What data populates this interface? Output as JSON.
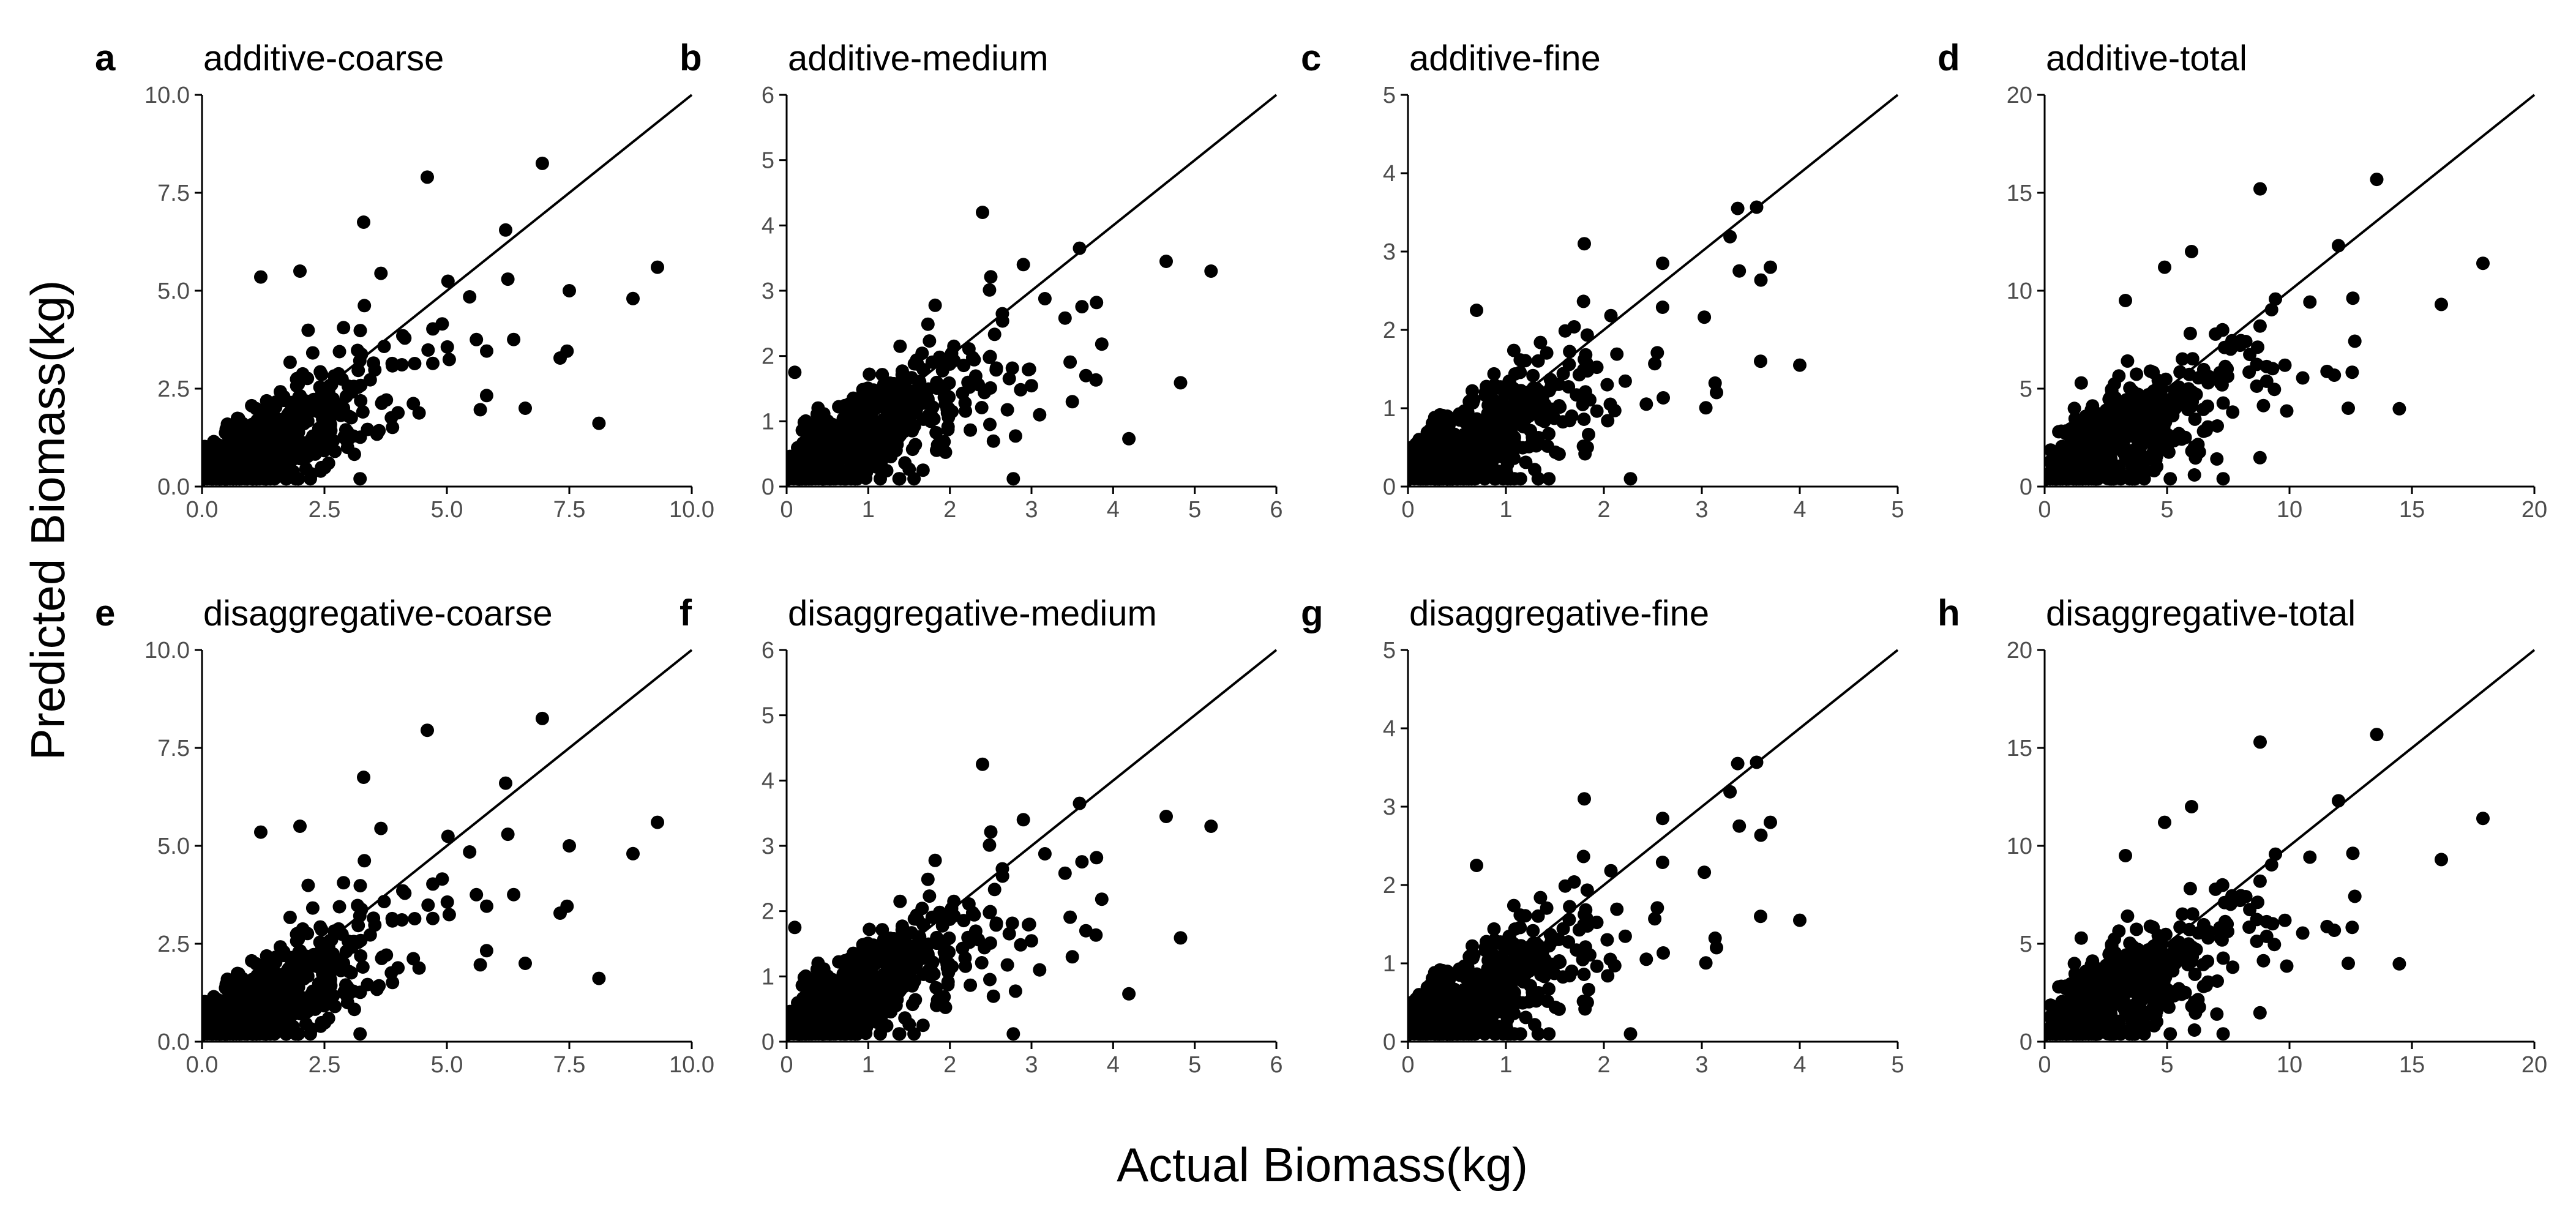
{
  "figure": {
    "xlabel": "Actual Biomass(kg)",
    "ylabel": "Predicted Biomass(kg)",
    "point_color": "#000000",
    "axis_color": "#000000",
    "tick_label_color": "#4d4d4d"
  },
  "chart_data": [
    {
      "type": "scatter",
      "letter": "a",
      "title": "additive-coarse",
      "xlim": [
        0,
        10
      ],
      "ylim": [
        0,
        10
      ],
      "xticks": [
        "0.0",
        "2.5",
        "5.0",
        "7.5",
        "10.0"
      ],
      "yticks": [
        "0.0",
        "2.5",
        "5.0",
        "7.5",
        "10.0"
      ],
      "identity_line": true,
      "n_points": 520,
      "seed": 11,
      "highlight_points": [
        [
          4.6,
          7.9
        ],
        [
          3.3,
          6.75
        ],
        [
          6.2,
          6.55
        ],
        [
          9.3,
          5.6
        ],
        [
          8.8,
          4.8
        ],
        [
          7.5,
          5.0
        ],
        [
          6.6,
          2.0
        ],
        [
          1.2,
          5.35
        ],
        [
          2.0,
          5.5
        ]
      ]
    },
    {
      "type": "scatter",
      "letter": "b",
      "title": "additive-medium",
      "xlim": [
        0,
        6
      ],
      "ylim": [
        0,
        6
      ],
      "xticks": [
        "0",
        "1",
        "2",
        "3",
        "4",
        "5",
        "6"
      ],
      "yticks": [
        "0",
        "1",
        "2",
        "3",
        "4",
        "5",
        "6"
      ],
      "identity_line": true,
      "n_points": 540,
      "seed": 23,
      "highlight_points": [
        [
          2.4,
          4.2
        ],
        [
          5.2,
          3.3
        ],
        [
          4.65,
          3.45
        ],
        [
          3.5,
          1.3
        ],
        [
          3.1,
          1.1
        ],
        [
          0.1,
          1.75
        ],
        [
          2.9,
          3.4
        ]
      ]
    },
    {
      "type": "scatter",
      "letter": "c",
      "title": "additive-fine",
      "xlim": [
        0,
        5
      ],
      "ylim": [
        0,
        5
      ],
      "xticks": [
        "0",
        "1",
        "2",
        "3",
        "4",
        "5"
      ],
      "yticks": [
        "0",
        "1",
        "2",
        "3",
        "4",
        "5"
      ],
      "identity_line": true,
      "n_points": 540,
      "seed": 37,
      "highlight_points": [
        [
          1.8,
          3.1
        ],
        [
          4.0,
          1.55
        ],
        [
          3.6,
          1.6
        ],
        [
          3.7,
          2.8
        ],
        [
          3.15,
          1.2
        ],
        [
          0.7,
          2.25
        ],
        [
          2.6,
          2.85
        ]
      ]
    },
    {
      "type": "scatter",
      "letter": "d",
      "title": "additive-total",
      "xlim": [
        0,
        20
      ],
      "ylim": [
        0,
        20
      ],
      "xticks": [
        "0",
        "5",
        "10",
        "15",
        "20"
      ],
      "yticks": [
        "0",
        "5",
        "10",
        "15",
        "20"
      ],
      "identity_line": true,
      "n_points": 540,
      "seed": 41,
      "highlight_points": [
        [
          8.8,
          15.2
        ],
        [
          17.9,
          11.4
        ],
        [
          16.2,
          9.3
        ],
        [
          12.4,
          4.0
        ],
        [
          6.0,
          12.0
        ],
        [
          12.0,
          12.3
        ],
        [
          3.3,
          9.5
        ],
        [
          4.9,
          11.2
        ]
      ]
    },
    {
      "type": "scatter",
      "letter": "e",
      "title": "disaggregative-coarse",
      "xlim": [
        0,
        10
      ],
      "ylim": [
        0,
        10
      ],
      "xticks": [
        "0.0",
        "2.5",
        "5.0",
        "7.5",
        "10.0"
      ],
      "yticks": [
        "0.0",
        "2.5",
        "5.0",
        "7.5",
        "10.0"
      ],
      "identity_line": true,
      "n_points": 520,
      "seed": 11,
      "highlight_points": [
        [
          4.6,
          7.95
        ],
        [
          3.3,
          6.75
        ],
        [
          6.2,
          6.6
        ],
        [
          9.3,
          5.6
        ],
        [
          8.8,
          4.8
        ],
        [
          7.5,
          5.0
        ],
        [
          6.6,
          2.0
        ],
        [
          1.2,
          5.35
        ],
        [
          2.0,
          5.5
        ]
      ]
    },
    {
      "type": "scatter",
      "letter": "f",
      "title": "disaggregative-medium",
      "xlim": [
        0,
        6
      ],
      "ylim": [
        0,
        6
      ],
      "xticks": [
        "0",
        "1",
        "2",
        "3",
        "4",
        "5",
        "6"
      ],
      "yticks": [
        "0",
        "1",
        "2",
        "3",
        "4",
        "5",
        "6"
      ],
      "identity_line": true,
      "n_points": 540,
      "seed": 23,
      "highlight_points": [
        [
          2.4,
          4.25
        ],
        [
          5.2,
          3.3
        ],
        [
          4.65,
          3.45
        ],
        [
          3.5,
          1.3
        ],
        [
          3.1,
          1.1
        ],
        [
          0.1,
          1.75
        ],
        [
          2.9,
          3.4
        ]
      ]
    },
    {
      "type": "scatter",
      "letter": "g",
      "title": "disaggregative-fine",
      "xlim": [
        0,
        5
      ],
      "ylim": [
        0,
        5
      ],
      "xticks": [
        "0",
        "1",
        "2",
        "3",
        "4",
        "5"
      ],
      "yticks": [
        "0",
        "1",
        "2",
        "3",
        "4",
        "5"
      ],
      "identity_line": true,
      "n_points": 540,
      "seed": 37,
      "highlight_points": [
        [
          1.8,
          3.1
        ],
        [
          4.0,
          1.55
        ],
        [
          3.6,
          1.6
        ],
        [
          3.7,
          2.8
        ],
        [
          3.15,
          1.2
        ],
        [
          0.7,
          2.25
        ],
        [
          2.6,
          2.85
        ]
      ]
    },
    {
      "type": "scatter",
      "letter": "h",
      "title": "disaggregative-total",
      "xlim": [
        0,
        20
      ],
      "ylim": [
        0,
        20
      ],
      "xticks": [
        "0",
        "5",
        "10",
        "15",
        "20"
      ],
      "yticks": [
        "0",
        "5",
        "10",
        "15",
        "20"
      ],
      "identity_line": true,
      "n_points": 540,
      "seed": 41,
      "highlight_points": [
        [
          8.8,
          15.3
        ],
        [
          17.9,
          11.4
        ],
        [
          16.2,
          9.3
        ],
        [
          12.4,
          4.0
        ],
        [
          6.0,
          12.0
        ],
        [
          12.0,
          12.3
        ],
        [
          3.3,
          9.5
        ],
        [
          4.9,
          11.2
        ]
      ]
    }
  ]
}
